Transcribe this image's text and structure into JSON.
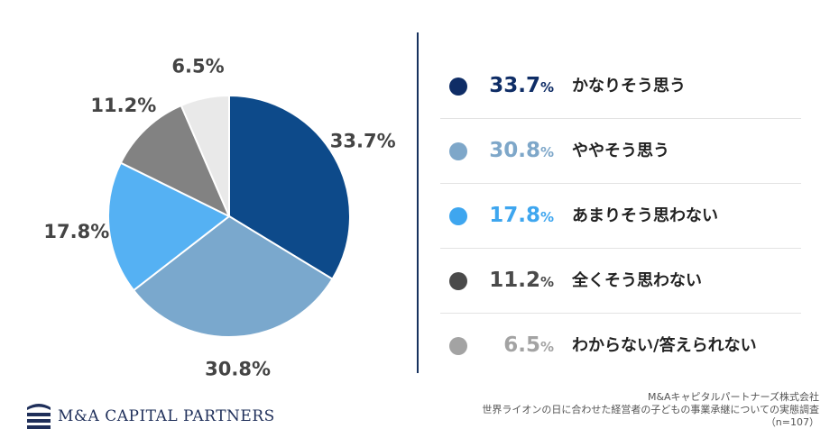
{
  "chart_data": {
    "type": "pie",
    "title": "",
    "slices": [
      {
        "label": "かなりそう思う",
        "value": 33.7,
        "display": "33.7",
        "color": "#0d4a8a",
        "legend_color": "#0f2d66",
        "pie_text": "33.7%"
      },
      {
        "label": "ややそう思う",
        "value": 30.8,
        "display": "30.8",
        "color": "#7aa8cd",
        "legend_color": "#7ea7c9",
        "pie_text": "30.8%"
      },
      {
        "label": "あまりそう思わない",
        "value": 17.8,
        "display": "17.8",
        "color": "#55b1f3",
        "legend_color": "#3ea6ef",
        "pie_text": "17.8%"
      },
      {
        "label": "全くそう思わない",
        "value": 11.2,
        "display": "11.2",
        "color": "#828282",
        "legend_color": "#4a4a4a",
        "pie_text": "11.2%"
      },
      {
        "label": "わからない/答えられない",
        "value": 6.5,
        "display": "6.5",
        "color": "#e9e9e9",
        "legend_color": "#a3a3a3",
        "pie_text": "6.5%"
      }
    ],
    "unit": "%"
  },
  "logo": {
    "text": "M&A CAPITAL PARTNERS"
  },
  "source": {
    "company": "M&Aキャピタルパートナーズ株式会社",
    "survey": "世界ライオンの日に合わせた経営者の子どもの事業承継についての実態調査",
    "sample": "（n=107）"
  }
}
